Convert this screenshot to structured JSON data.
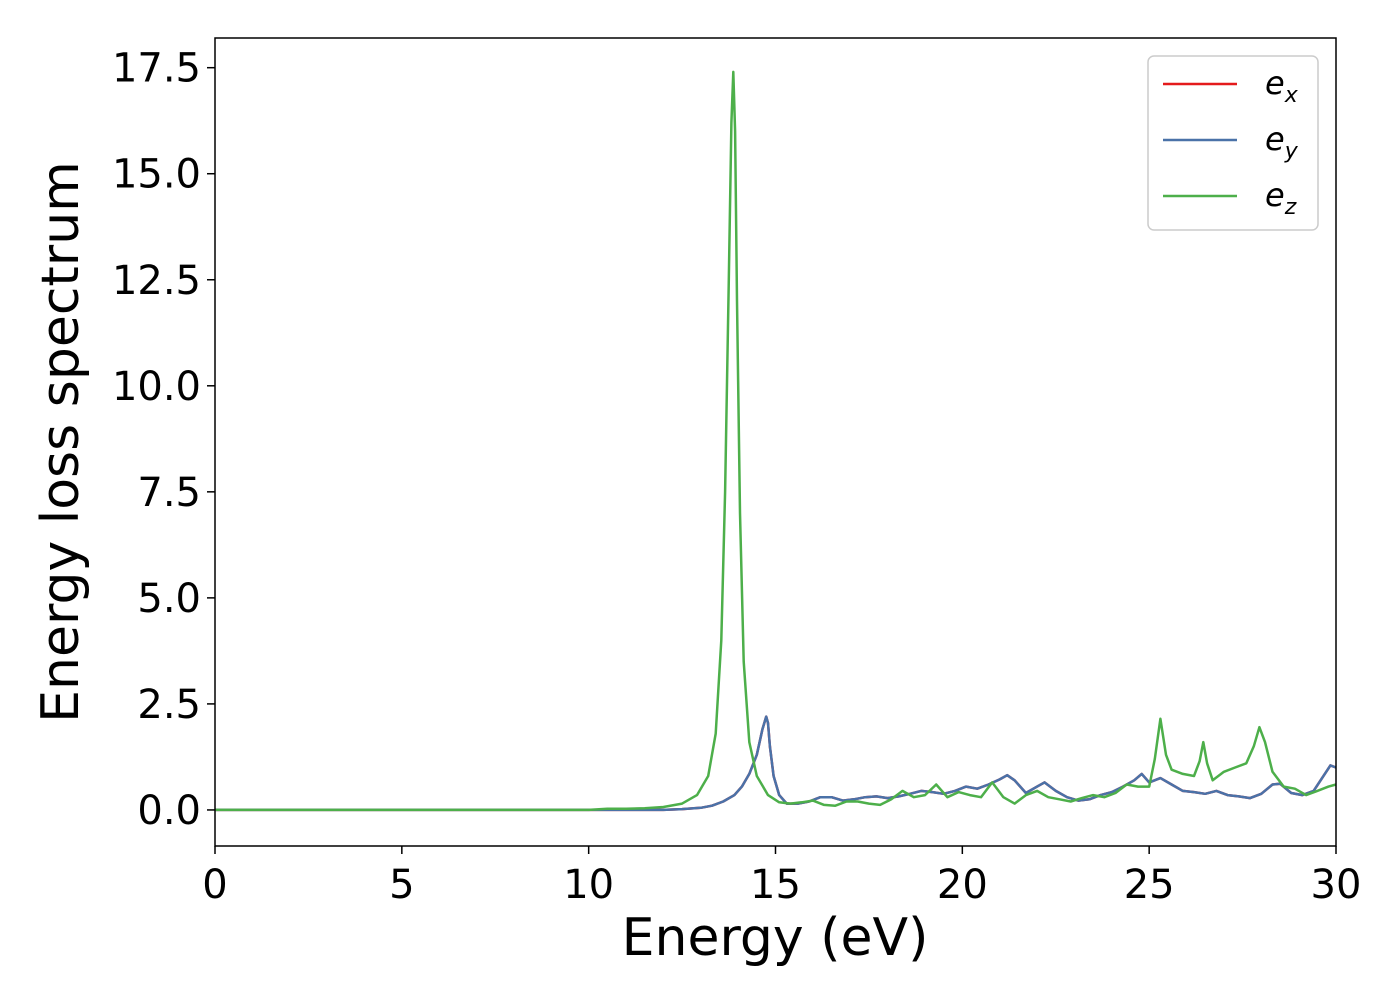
{
  "chart_data": {
    "type": "line",
    "xlabel": "Energy (eV)",
    "ylabel": "Energy loss spectrum",
    "xlim": [
      0,
      30
    ],
    "ylim": [
      -0.85,
      18.2
    ],
    "xticks": [
      0,
      5,
      10,
      15,
      20,
      25,
      30
    ],
    "xtick_labels": [
      "0",
      "5",
      "10",
      "15",
      "20",
      "25",
      "30"
    ],
    "yticks": [
      0.0,
      2.5,
      5.0,
      7.5,
      10.0,
      12.5,
      15.0,
      17.5
    ],
    "ytick_labels": [
      "0.0",
      "2.5",
      "5.0",
      "7.5",
      "10.0",
      "12.5",
      "15.0",
      "17.5"
    ],
    "grid": false,
    "legend_position": "top-right",
    "series": [
      {
        "name": "e",
        "subscript": "x",
        "color": "#e41a1c",
        "x": [
          0,
          5,
          9,
          10,
          10.5,
          11,
          11.5,
          12,
          12.5,
          13,
          13.3,
          13.6,
          13.9,
          14.1,
          14.3,
          14.5,
          14.65,
          14.75,
          14.8,
          14.85,
          14.95,
          15.1,
          15.3,
          15.6,
          15.9,
          16.2,
          16.5,
          16.8,
          17.1,
          17.4,
          17.7,
          18.0,
          18.3,
          18.6,
          18.9,
          19.2,
          19.5,
          19.8,
          20.1,
          20.4,
          20.7,
          21.0,
          21.2,
          21.4,
          21.7,
          22.0,
          22.2,
          22.5,
          22.8,
          23.1,
          23.4,
          23.7,
          24.0,
          24.3,
          24.6,
          24.8,
          25.0,
          25.3,
          25.6,
          25.9,
          26.2,
          26.5,
          26.8,
          27.1,
          27.4,
          27.7,
          28.0,
          28.3,
          28.5,
          28.8,
          29.1,
          29.4,
          29.7,
          29.85,
          30.0
        ],
        "y": [
          0.0,
          0.0,
          0.0,
          0.0,
          0.0,
          0.0,
          0.0,
          0.0,
          0.02,
          0.05,
          0.1,
          0.2,
          0.35,
          0.55,
          0.85,
          1.3,
          1.9,
          2.2,
          2.05,
          1.5,
          0.8,
          0.35,
          0.15,
          0.15,
          0.2,
          0.3,
          0.3,
          0.22,
          0.25,
          0.3,
          0.32,
          0.28,
          0.32,
          0.38,
          0.45,
          0.42,
          0.38,
          0.45,
          0.55,
          0.5,
          0.6,
          0.72,
          0.82,
          0.7,
          0.4,
          0.55,
          0.65,
          0.45,
          0.3,
          0.22,
          0.25,
          0.35,
          0.42,
          0.55,
          0.7,
          0.85,
          0.65,
          0.75,
          0.6,
          0.45,
          0.42,
          0.38,
          0.45,
          0.35,
          0.32,
          0.28,
          0.38,
          0.6,
          0.62,
          0.4,
          0.35,
          0.45,
          0.85,
          1.05,
          1.0
        ]
      },
      {
        "name": "e",
        "subscript": "y",
        "color": "#4a72a8",
        "x": [
          0,
          5,
          9,
          10,
          10.5,
          11,
          11.5,
          12,
          12.5,
          13,
          13.3,
          13.6,
          13.9,
          14.1,
          14.3,
          14.5,
          14.65,
          14.75,
          14.8,
          14.85,
          14.95,
          15.1,
          15.3,
          15.6,
          15.9,
          16.2,
          16.5,
          16.8,
          17.1,
          17.4,
          17.7,
          18.0,
          18.3,
          18.6,
          18.9,
          19.2,
          19.5,
          19.8,
          20.1,
          20.4,
          20.7,
          21.0,
          21.2,
          21.4,
          21.7,
          22.0,
          22.2,
          22.5,
          22.8,
          23.1,
          23.4,
          23.7,
          24.0,
          24.3,
          24.6,
          24.8,
          25.0,
          25.3,
          25.6,
          25.9,
          26.2,
          26.5,
          26.8,
          27.1,
          27.4,
          27.7,
          28.0,
          28.3,
          28.5,
          28.8,
          29.1,
          29.4,
          29.7,
          29.85,
          30.0
        ],
        "y": [
          0.0,
          0.0,
          0.0,
          0.0,
          0.0,
          0.0,
          0.0,
          0.0,
          0.02,
          0.05,
          0.1,
          0.2,
          0.35,
          0.55,
          0.85,
          1.3,
          1.9,
          2.2,
          2.05,
          1.5,
          0.8,
          0.35,
          0.15,
          0.15,
          0.2,
          0.3,
          0.3,
          0.22,
          0.25,
          0.3,
          0.32,
          0.28,
          0.32,
          0.38,
          0.45,
          0.42,
          0.38,
          0.45,
          0.55,
          0.5,
          0.6,
          0.72,
          0.82,
          0.7,
          0.4,
          0.55,
          0.65,
          0.45,
          0.3,
          0.22,
          0.25,
          0.35,
          0.42,
          0.55,
          0.7,
          0.85,
          0.65,
          0.75,
          0.6,
          0.45,
          0.42,
          0.38,
          0.45,
          0.35,
          0.32,
          0.28,
          0.38,
          0.6,
          0.62,
          0.4,
          0.35,
          0.45,
          0.85,
          1.05,
          1.0
        ]
      },
      {
        "name": "e",
        "subscript": "z",
        "color": "#4daf4a",
        "x": [
          0,
          5,
          9,
          10,
          10.5,
          11,
          11.5,
          12,
          12.5,
          12.9,
          13.2,
          13.4,
          13.55,
          13.65,
          13.75,
          13.82,
          13.87,
          13.92,
          13.97,
          14.05,
          14.15,
          14.3,
          14.5,
          14.8,
          15.1,
          15.4,
          15.7,
          16.0,
          16.3,
          16.6,
          16.9,
          17.2,
          17.5,
          17.8,
          18.1,
          18.4,
          18.7,
          19.0,
          19.3,
          19.6,
          19.9,
          20.2,
          20.5,
          20.8,
          21.1,
          21.4,
          21.7,
          22.0,
          22.3,
          22.6,
          22.9,
          23.2,
          23.5,
          23.8,
          24.1,
          24.4,
          24.7,
          25.0,
          25.15,
          25.3,
          25.45,
          25.6,
          25.9,
          26.2,
          26.35,
          26.45,
          26.55,
          26.7,
          27.0,
          27.3,
          27.6,
          27.8,
          27.95,
          28.1,
          28.3,
          28.6,
          28.9,
          29.2,
          29.5,
          29.8,
          30.0
        ],
        "y": [
          0.0,
          0.0,
          0.0,
          0.0,
          0.03,
          0.03,
          0.04,
          0.07,
          0.15,
          0.35,
          0.8,
          1.8,
          4.0,
          7.5,
          12.5,
          16.2,
          17.4,
          16.0,
          12.0,
          7.0,
          3.5,
          1.6,
          0.8,
          0.35,
          0.18,
          0.15,
          0.18,
          0.22,
          0.12,
          0.1,
          0.2,
          0.2,
          0.15,
          0.12,
          0.25,
          0.45,
          0.3,
          0.35,
          0.6,
          0.3,
          0.42,
          0.35,
          0.3,
          0.65,
          0.3,
          0.15,
          0.35,
          0.45,
          0.3,
          0.25,
          0.2,
          0.28,
          0.35,
          0.3,
          0.4,
          0.6,
          0.55,
          0.55,
          1.2,
          2.15,
          1.3,
          0.95,
          0.85,
          0.8,
          1.15,
          1.6,
          1.1,
          0.7,
          0.9,
          1.0,
          1.1,
          1.5,
          1.95,
          1.6,
          0.9,
          0.55,
          0.5,
          0.35,
          0.45,
          0.55,
          0.6
        ]
      }
    ]
  }
}
